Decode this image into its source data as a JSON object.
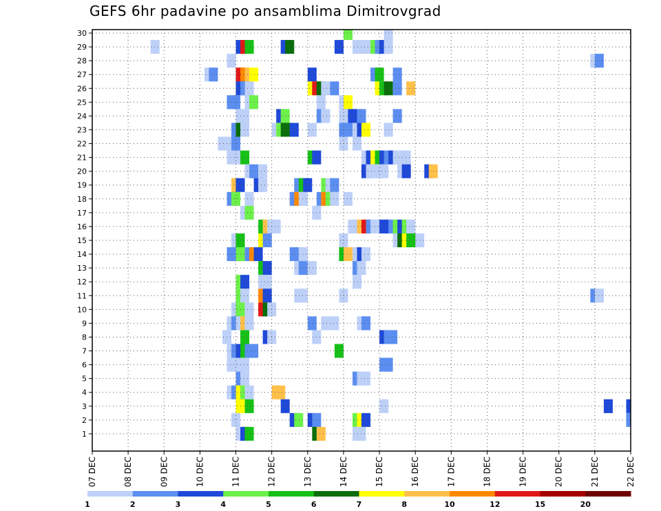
{
  "chart_data": {
    "type": "heatmap",
    "title": "GEFS 6hr padavine po ansamblima Dimitrovgrad",
    "x_tick_labels": [
      "07 DEC",
      "08 DEC",
      "09 DEC",
      "10 DEC",
      "11 DEC",
      "12 DEC",
      "13 DEC",
      "14 DEC",
      "15 DEC",
      "16 DEC",
      "17 DEC",
      "18 DEC",
      "19 DEC",
      "20 DEC",
      "21 DEC",
      "22 DEC"
    ],
    "x_units": "days from 07 DEC (6-hour steps)",
    "y_tick_labels": [
      "1",
      "2",
      "3",
      "4",
      "5",
      "6",
      "7",
      "8",
      "9",
      "10",
      "11",
      "12",
      "13",
      "14",
      "15",
      "16",
      "17",
      "18",
      "19",
      "20",
      "21",
      "22",
      "23",
      "24",
      "25",
      "26",
      "27",
      "28",
      "29",
      "30"
    ],
    "ylim": [
      0,
      30
    ],
    "grid": true,
    "legend_position": "bottom",
    "legend": {
      "labels": [
        "1",
        "2",
        "3",
        "4",
        "5",
        "6",
        "7",
        "8",
        "10",
        "12",
        "15",
        "20"
      ],
      "colors": [
        "#bdd0f8",
        "#5b8ef0",
        "#1f49d8",
        "#6cf04a",
        "#17c017",
        "#0a6e0a",
        "#ffff00",
        "#ffc04a",
        "#ff8800",
        "#e01818",
        "#a50000",
        "#6e0000"
      ]
    },
    "cells": [
      {
        "x": 1.625,
        "y": 29,
        "c": 1
      },
      {
        "x": 4.0,
        "y": 29,
        "c": 3
      },
      {
        "x": 4.125,
        "y": 29,
        "c": 10
      },
      {
        "x": 4.25,
        "y": 29,
        "c": 5
      },
      {
        "x": 5.25,
        "y": 29,
        "c": 3
      },
      {
        "x": 5.375,
        "y": 29,
        "c": 6
      },
      {
        "x": 6.75,
        "y": 29,
        "c": 3
      },
      {
        "x": 7.25,
        "y": 29,
        "c": 1
      },
      {
        "x": 7.375,
        "y": 29,
        "c": 1
      },
      {
        "x": 7.625,
        "y": 29,
        "c": 1
      },
      {
        "x": 7.75,
        "y": 29,
        "c": 4
      },
      {
        "x": 7.875,
        "y": 29,
        "c": 2
      },
      {
        "x": 8.0,
        "y": 29,
        "c": 3
      },
      {
        "x": 8.125,
        "y": 29,
        "c": 1
      },
      {
        "x": 7.0,
        "y": 30,
        "c": 4
      },
      {
        "x": 8.125,
        "y": 30,
        "c": 1
      },
      {
        "x": 3.75,
        "y": 28,
        "c": 1
      },
      {
        "x": 13.875,
        "y": 28,
        "c": 1
      },
      {
        "x": 14.0,
        "y": 28,
        "c": 2
      },
      {
        "x": 3.125,
        "y": 27,
        "c": 1
      },
      {
        "x": 3.25,
        "y": 27,
        "c": 2
      },
      {
        "x": 4.0,
        "y": 27,
        "c": 10
      },
      {
        "x": 4.125,
        "y": 27,
        "c": 9
      },
      {
        "x": 4.25,
        "y": 27,
        "c": 8
      },
      {
        "x": 4.375,
        "y": 27,
        "c": 7
      },
      {
        "x": 6.0,
        "y": 27,
        "c": 3
      },
      {
        "x": 7.75,
        "y": 27,
        "c": 2
      },
      {
        "x": 7.875,
        "y": 27,
        "c": 5
      },
      {
        "x": 8.375,
        "y": 27,
        "c": 2
      },
      {
        "x": 4.0,
        "y": 26,
        "c": 3
      },
      {
        "x": 4.125,
        "y": 26,
        "c": 2
      },
      {
        "x": 4.25,
        "y": 26,
        "c": 1
      },
      {
        "x": 6.0,
        "y": 26,
        "c": 7
      },
      {
        "x": 6.125,
        "y": 26,
        "c": 10
      },
      {
        "x": 6.25,
        "y": 26,
        "c": 6
      },
      {
        "x": 6.375,
        "y": 26,
        "c": 1
      },
      {
        "x": 6.625,
        "y": 26,
        "c": 2
      },
      {
        "x": 7.875,
        "y": 26,
        "c": 7
      },
      {
        "x": 8.0,
        "y": 26,
        "c": 5
      },
      {
        "x": 8.125,
        "y": 26,
        "c": 6
      },
      {
        "x": 8.375,
        "y": 26,
        "c": 2
      },
      {
        "x": 8.75,
        "y": 26,
        "c": 8
      },
      {
        "x": 3.75,
        "y": 25,
        "c": 2
      },
      {
        "x": 3.875,
        "y": 25,
        "c": 2
      },
      {
        "x": 4.25,
        "y": 25,
        "c": 1
      },
      {
        "x": 4.375,
        "y": 25,
        "c": 4
      },
      {
        "x": 6.25,
        "y": 25,
        "c": 1
      },
      {
        "x": 6.875,
        "y": 25,
        "c": 1
      },
      {
        "x": 7.0,
        "y": 25,
        "c": 7
      },
      {
        "x": 4.0,
        "y": 24,
        "c": 1
      },
      {
        "x": 4.125,
        "y": 24,
        "c": 1
      },
      {
        "x": 5.125,
        "y": 24,
        "c": 3
      },
      {
        "x": 5.25,
        "y": 24,
        "c": 4
      },
      {
        "x": 6.25,
        "y": 24,
        "c": 2
      },
      {
        "x": 6.375,
        "y": 24,
        "c": 1
      },
      {
        "x": 6.875,
        "y": 24,
        "c": 1
      },
      {
        "x": 7.0,
        "y": 24,
        "c": 1
      },
      {
        "x": 7.125,
        "y": 24,
        "c": 3
      },
      {
        "x": 7.25,
        "y": 24,
        "c": 3
      },
      {
        "x": 7.375,
        "y": 24,
        "c": 2
      },
      {
        "x": 8.375,
        "y": 24,
        "c": 2
      },
      {
        "x": 3.875,
        "y": 23,
        "c": 2
      },
      {
        "x": 4.0,
        "y": 23,
        "c": 6
      },
      {
        "x": 4.125,
        "y": 23,
        "c": 1
      },
      {
        "x": 5.0,
        "y": 23,
        "c": 1
      },
      {
        "x": 5.125,
        "y": 23,
        "c": 4
      },
      {
        "x": 5.25,
        "y": 23,
        "c": 6
      },
      {
        "x": 5.375,
        "y": 23,
        "c": 6
      },
      {
        "x": 5.5,
        "y": 23,
        "c": 3
      },
      {
        "x": 6.0,
        "y": 23,
        "c": 1
      },
      {
        "x": 6.875,
        "y": 23,
        "c": 2
      },
      {
        "x": 7.0,
        "y": 23,
        "c": 2
      },
      {
        "x": 7.25,
        "y": 23,
        "c": 1
      },
      {
        "x": 7.375,
        "y": 23,
        "c": 3
      },
      {
        "x": 7.5,
        "y": 23,
        "c": 7
      },
      {
        "x": 8.125,
        "y": 23,
        "c": 1
      },
      {
        "x": 3.5,
        "y": 22,
        "c": 1
      },
      {
        "x": 3.75,
        "y": 22,
        "c": 1
      },
      {
        "x": 3.875,
        "y": 22,
        "c": 2
      },
      {
        "x": 6.875,
        "y": 22,
        "c": 1
      },
      {
        "x": 7.25,
        "y": 22,
        "c": 1
      },
      {
        "x": 3.75,
        "y": 21,
        "c": 1
      },
      {
        "x": 3.875,
        "y": 21,
        "c": 1
      },
      {
        "x": 4.0,
        "y": 21,
        "c": 1
      },
      {
        "x": 4.125,
        "y": 21,
        "c": 5
      },
      {
        "x": 6.0,
        "y": 21,
        "c": 5
      },
      {
        "x": 6.125,
        "y": 21,
        "c": 3
      },
      {
        "x": 7.5,
        "y": 21,
        "c": 1
      },
      {
        "x": 7.625,
        "y": 21,
        "c": 3
      },
      {
        "x": 7.75,
        "y": 21,
        "c": 7
      },
      {
        "x": 7.875,
        "y": 21,
        "c": 5
      },
      {
        "x": 8.0,
        "y": 21,
        "c": 3
      },
      {
        "x": 8.125,
        "y": 21,
        "c": 2
      },
      {
        "x": 8.25,
        "y": 21,
        "c": 3
      },
      {
        "x": 8.375,
        "y": 21,
        "c": 1
      },
      {
        "x": 8.5,
        "y": 21,
        "c": 1
      },
      {
        "x": 8.625,
        "y": 21,
        "c": 1
      },
      {
        "x": 4.25,
        "y": 20,
        "c": 1
      },
      {
        "x": 4.375,
        "y": 20,
        "c": 2
      },
      {
        "x": 4.625,
        "y": 20,
        "c": 1
      },
      {
        "x": 7.5,
        "y": 20,
        "c": 3
      },
      {
        "x": 7.625,
        "y": 20,
        "c": 1
      },
      {
        "x": 7.75,
        "y": 20,
        "c": 1
      },
      {
        "x": 7.875,
        "y": 20,
        "c": 1
      },
      {
        "x": 8.0,
        "y": 20,
        "c": 1
      },
      {
        "x": 8.5,
        "y": 20,
        "c": 1
      },
      {
        "x": 8.625,
        "y": 20,
        "c": 3
      },
      {
        "x": 9.25,
        "y": 20,
        "c": 3
      },
      {
        "x": 9.375,
        "y": 20,
        "c": 8
      },
      {
        "x": 3.875,
        "y": 19,
        "c": 8
      },
      {
        "x": 4.0,
        "y": 19,
        "c": 3
      },
      {
        "x": 4.5,
        "y": 19,
        "c": 3
      },
      {
        "x": 4.625,
        "y": 19,
        "c": 1
      },
      {
        "x": 5.625,
        "y": 19,
        "c": 2
      },
      {
        "x": 5.75,
        "y": 19,
        "c": 5
      },
      {
        "x": 5.875,
        "y": 19,
        "c": 3
      },
      {
        "x": 6.375,
        "y": 19,
        "c": 4
      },
      {
        "x": 6.5,
        "y": 19,
        "c": 1
      },
      {
        "x": 6.625,
        "y": 19,
        "c": 2
      },
      {
        "x": 3.75,
        "y": 18,
        "c": 2
      },
      {
        "x": 3.875,
        "y": 18,
        "c": 4
      },
      {
        "x": 4.25,
        "y": 18,
        "c": 1
      },
      {
        "x": 5.5,
        "y": 18,
        "c": 2
      },
      {
        "x": 5.625,
        "y": 18,
        "c": 9
      },
      {
        "x": 5.75,
        "y": 18,
        "c": 1
      },
      {
        "x": 6.25,
        "y": 18,
        "c": 2
      },
      {
        "x": 6.375,
        "y": 18,
        "c": 9
      },
      {
        "x": 6.5,
        "y": 18,
        "c": 4
      },
      {
        "x": 6.625,
        "y": 18,
        "c": 1
      },
      {
        "x": 7.0,
        "y": 18,
        "c": 1
      },
      {
        "x": 4.125,
        "y": 17,
        "c": 1
      },
      {
        "x": 4.25,
        "y": 17,
        "c": 4
      },
      {
        "x": 6.125,
        "y": 17,
        "c": 1
      },
      {
        "x": 4.625,
        "y": 16,
        "c": 5
      },
      {
        "x": 4.75,
        "y": 16,
        "c": 8
      },
      {
        "x": 4.875,
        "y": 16,
        "c": 1
      },
      {
        "x": 5.0,
        "y": 16,
        "c": 1
      },
      {
        "x": 7.125,
        "y": 16,
        "c": 1
      },
      {
        "x": 7.25,
        "y": 16,
        "c": 1
      },
      {
        "x": 7.375,
        "y": 16,
        "c": 8
      },
      {
        "x": 7.5,
        "y": 16,
        "c": 10
      },
      {
        "x": 7.625,
        "y": 16,
        "c": 2
      },
      {
        "x": 7.75,
        "y": 16,
        "c": 1
      },
      {
        "x": 7.875,
        "y": 16,
        "c": 1
      },
      {
        "x": 8.0,
        "y": 16,
        "c": 3
      },
      {
        "x": 8.125,
        "y": 16,
        "c": 3
      },
      {
        "x": 8.25,
        "y": 16,
        "c": 2
      },
      {
        "x": 8.375,
        "y": 16,
        "c": 4
      },
      {
        "x": 8.5,
        "y": 16,
        "c": 3
      },
      {
        "x": 8.625,
        "y": 16,
        "c": 4
      },
      {
        "x": 8.75,
        "y": 16,
        "c": 1
      },
      {
        "x": 3.875,
        "y": 15,
        "c": 1
      },
      {
        "x": 4.0,
        "y": 15,
        "c": 5
      },
      {
        "x": 4.625,
        "y": 15,
        "c": 7
      },
      {
        "x": 4.75,
        "y": 15,
        "c": 2
      },
      {
        "x": 6.875,
        "y": 15,
        "c": 1
      },
      {
        "x": 8.375,
        "y": 15,
        "c": 1
      },
      {
        "x": 8.5,
        "y": 15,
        "c": 6
      },
      {
        "x": 8.625,
        "y": 15,
        "c": 7
      },
      {
        "x": 8.75,
        "y": 15,
        "c": 5
      },
      {
        "x": 8.875,
        "y": 15,
        "c": 5
      },
      {
        "x": 9.0,
        "y": 15,
        "c": 1
      },
      {
        "x": 3.75,
        "y": 14,
        "c": 2
      },
      {
        "x": 3.875,
        "y": 14,
        "c": 2
      },
      {
        "x": 4.0,
        "y": 14,
        "c": 4
      },
      {
        "x": 4.25,
        "y": 14,
        "c": 2
      },
      {
        "x": 4.375,
        "y": 14,
        "c": 9
      },
      {
        "x": 4.5,
        "y": 14,
        "c": 3
      },
      {
        "x": 5.5,
        "y": 14,
        "c": 2
      },
      {
        "x": 5.625,
        "y": 14,
        "c": 2
      },
      {
        "x": 5.75,
        "y": 14,
        "c": 1
      },
      {
        "x": 6.875,
        "y": 14,
        "c": 5
      },
      {
        "x": 7.0,
        "y": 14,
        "c": 8
      },
      {
        "x": 7.25,
        "y": 14,
        "c": 1
      },
      {
        "x": 7.375,
        "y": 14,
        "c": 3
      },
      {
        "x": 7.5,
        "y": 14,
        "c": 1
      },
      {
        "x": 4.625,
        "y": 13,
        "c": 5
      },
      {
        "x": 4.75,
        "y": 13,
        "c": 3
      },
      {
        "x": 5.625,
        "y": 13,
        "c": 1
      },
      {
        "x": 5.75,
        "y": 13,
        "c": 2
      },
      {
        "x": 6.0,
        "y": 13,
        "c": 1
      },
      {
        "x": 7.25,
        "y": 13,
        "c": 2
      },
      {
        "x": 7.375,
        "y": 13,
        "c": 1
      },
      {
        "x": 4.0,
        "y": 12,
        "c": 4
      },
      {
        "x": 4.125,
        "y": 12,
        "c": 3
      },
      {
        "x": 4.625,
        "y": 12,
        "c": 1
      },
      {
        "x": 4.75,
        "y": 12,
        "c": 1
      },
      {
        "x": 7.25,
        "y": 12,
        "c": 1
      },
      {
        "x": 4.0,
        "y": 11,
        "c": 4
      },
      {
        "x": 4.125,
        "y": 11,
        "c": 1
      },
      {
        "x": 4.625,
        "y": 11,
        "c": 9
      },
      {
        "x": 4.75,
        "y": 11,
        "c": 3
      },
      {
        "x": 5.625,
        "y": 11,
        "c": 1
      },
      {
        "x": 5.75,
        "y": 11,
        "c": 1
      },
      {
        "x": 6.875,
        "y": 11,
        "c": 1
      },
      {
        "x": 13.875,
        "y": 11,
        "c": 2
      },
      {
        "x": 14.0,
        "y": 11,
        "c": 1
      },
      {
        "x": 3.875,
        "y": 10,
        "c": 1
      },
      {
        "x": 4.0,
        "y": 10,
        "c": 4
      },
      {
        "x": 4.25,
        "y": 10,
        "c": 1
      },
      {
        "x": 4.625,
        "y": 10,
        "c": 10
      },
      {
        "x": 4.75,
        "y": 10,
        "c": 6
      },
      {
        "x": 4.875,
        "y": 10,
        "c": 1
      },
      {
        "x": 3.75,
        "y": 9,
        "c": 1
      },
      {
        "x": 3.875,
        "y": 9,
        "c": 2
      },
      {
        "x": 4.0,
        "y": 9,
        "c": 1
      },
      {
        "x": 4.125,
        "y": 9,
        "c": 8
      },
      {
        "x": 4.25,
        "y": 9,
        "c": 1
      },
      {
        "x": 6.0,
        "y": 9,
        "c": 2
      },
      {
        "x": 6.375,
        "y": 9,
        "c": 1
      },
      {
        "x": 6.625,
        "y": 9,
        "c": 1
      },
      {
        "x": 7.375,
        "y": 9,
        "c": 1
      },
      {
        "x": 7.5,
        "y": 9,
        "c": 2
      },
      {
        "x": 3.625,
        "y": 8,
        "c": 1
      },
      {
        "x": 4.125,
        "y": 8,
        "c": 5
      },
      {
        "x": 4.75,
        "y": 8,
        "c": 3
      },
      {
        "x": 4.875,
        "y": 8,
        "c": 1
      },
      {
        "x": 6.125,
        "y": 8,
        "c": 1
      },
      {
        "x": 8.0,
        "y": 8,
        "c": 3
      },
      {
        "x": 8.125,
        "y": 8,
        "c": 2
      },
      {
        "x": 8.25,
        "y": 8,
        "c": 2
      },
      {
        "x": 3.75,
        "y": 7,
        "c": 1
      },
      {
        "x": 3.875,
        "y": 7,
        "c": 2
      },
      {
        "x": 4.0,
        "y": 7,
        "c": 3
      },
      {
        "x": 4.125,
        "y": 7,
        "c": 5
      },
      {
        "x": 4.25,
        "y": 7,
        "c": 2
      },
      {
        "x": 4.375,
        "y": 7,
        "c": 2
      },
      {
        "x": 6.75,
        "y": 7,
        "c": 5
      },
      {
        "x": 3.75,
        "y": 6,
        "c": 1
      },
      {
        "x": 3.875,
        "y": 6,
        "c": 1
      },
      {
        "x": 4.125,
        "y": 6,
        "c": 1
      },
      {
        "x": 8.0,
        "y": 6,
        "c": 2
      },
      {
        "x": 8.125,
        "y": 6,
        "c": 2
      },
      {
        "x": 4.0,
        "y": 5,
        "c": 2
      },
      {
        "x": 4.125,
        "y": 5,
        "c": 1
      },
      {
        "x": 7.25,
        "y": 5,
        "c": 2
      },
      {
        "x": 7.375,
        "y": 5,
        "c": 1
      },
      {
        "x": 7.5,
        "y": 5,
        "c": 1
      },
      {
        "x": 3.75,
        "y": 4,
        "c": 1
      },
      {
        "x": 3.875,
        "y": 4,
        "c": 2
      },
      {
        "x": 4.0,
        "y": 4,
        "c": 7
      },
      {
        "x": 4.125,
        "y": 4,
        "c": 4
      },
      {
        "x": 4.25,
        "y": 4,
        "c": 1
      },
      {
        "x": 5.0,
        "y": 4,
        "c": 8
      },
      {
        "x": 5.125,
        "y": 4,
        "c": 8
      },
      {
        "x": 4.0,
        "y": 3,
        "c": 7
      },
      {
        "x": 4.25,
        "y": 3,
        "c": 5
      },
      {
        "x": 5.25,
        "y": 3,
        "c": 3
      },
      {
        "x": 8.0,
        "y": 3,
        "c": 1
      },
      {
        "x": 14.25,
        "y": 3,
        "c": 3
      },
      {
        "x": 14.875,
        "y": 3,
        "c": 3
      },
      {
        "x": 3.875,
        "y": 2,
        "c": 1
      },
      {
        "x": 5.5,
        "y": 2,
        "c": 3
      },
      {
        "x": 5.625,
        "y": 2,
        "c": 4
      },
      {
        "x": 6.0,
        "y": 2,
        "c": 3
      },
      {
        "x": 6.125,
        "y": 2,
        "c": 2
      },
      {
        "x": 7.25,
        "y": 2,
        "c": 4
      },
      {
        "x": 7.375,
        "y": 2,
        "c": 7
      },
      {
        "x": 7.5,
        "y": 2,
        "c": 3
      },
      {
        "x": 14.875,
        "y": 2,
        "c": 2
      },
      {
        "x": 4.0,
        "y": 1,
        "c": 1
      },
      {
        "x": 4.125,
        "y": 1,
        "c": 3
      },
      {
        "x": 4.25,
        "y": 1,
        "c": 5
      },
      {
        "x": 6.125,
        "y": 1,
        "c": 6
      },
      {
        "x": 6.25,
        "y": 1,
        "c": 8
      },
      {
        "x": 7.25,
        "y": 1,
        "c": 1
      },
      {
        "x": 7.375,
        "y": 1,
        "c": 1
      }
    ]
  }
}
